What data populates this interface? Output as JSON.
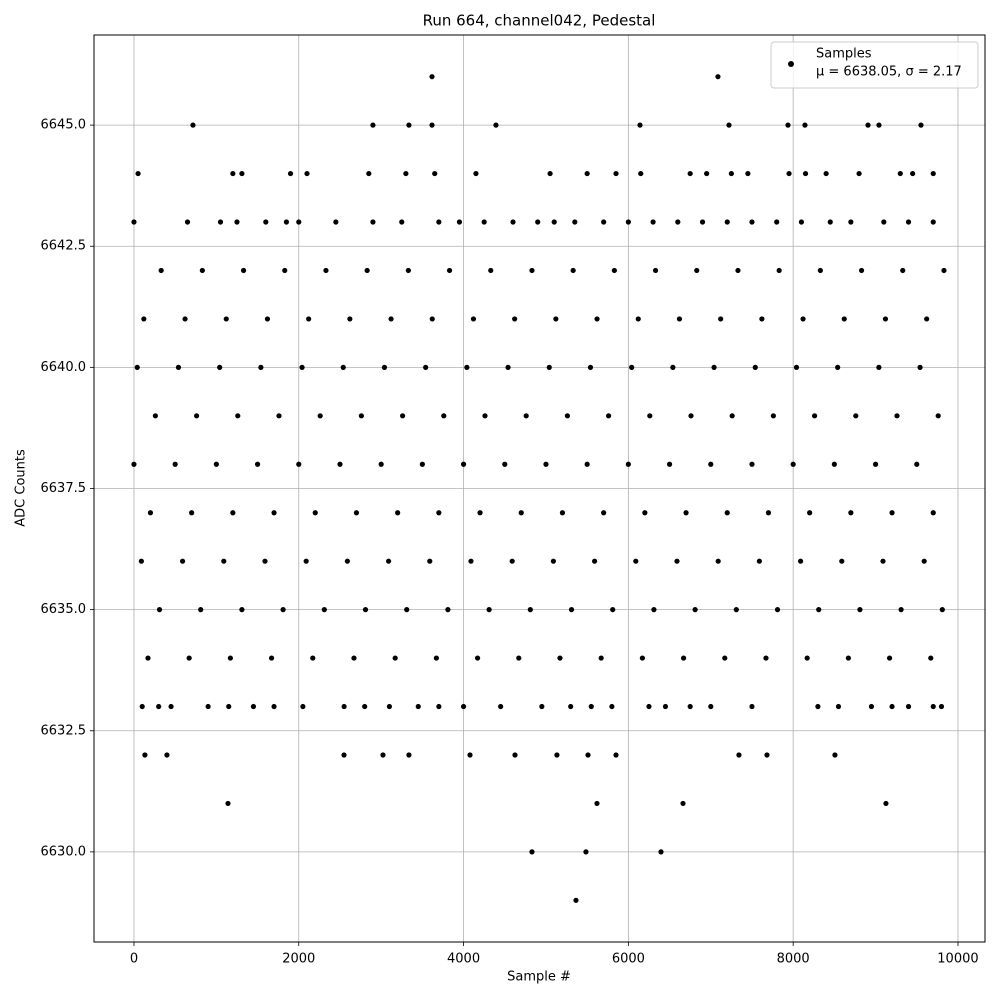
{
  "chart_data": {
    "type": "scatter",
    "title": "Run 664, channel042, Pedestal",
    "xlabel": "Sample #",
    "ylabel": "ADC Counts",
    "legend_note": "μ = 6638.05, σ = 2.17",
    "legend": "upper right",
    "grid": true,
    "xlim": [
      -485,
      10328
    ],
    "ylim": [
      6628.14,
      6646.86
    ],
    "xticks": [
      0,
      2000,
      4000,
      6000,
      8000,
      10000
    ],
    "yticks": [
      {
        "value": 6630,
        "label": "6630.0"
      },
      6632.5,
      {
        "value": 6635,
        "label": "6635.0"
      },
      6637.5,
      {
        "value": 6640,
        "label": "6640.0"
      },
      6642.5,
      {
        "value": 6645,
        "label": "6645.0"
      }
    ],
    "series": [
      {
        "name": "Samples",
        "color": "#000000",
        "x": [
          3617,
          7087,
          716,
          2900,
          3337,
          3617,
          4393,
          6141,
          7221,
          7937,
          8143,
          8908,
          9041,
          9551,
          133,
          400,
          2549,
          3022,
          3337,
          4078,
          4624,
          5133,
          5510,
          5850,
          7342,
          7682,
          8507,
          1141,
          5619,
          6663,
          9126,
          4830,
          5485,
          6396,
          5364,
          50,
          1200,
          1310,
          1900,
          2100,
          2850,
          3300,
          3650,
          4150,
          5050,
          5500,
          5850,
          6150,
          6750,
          6950,
          7250,
          7450,
          7950,
          8150,
          8400,
          8800,
          9300,
          9450,
          9700,
          0,
          650,
          1050,
          1250,
          1600,
          1850,
          2000,
          2450,
          2900,
          3250,
          3700,
          3950,
          4250,
          4600,
          4900,
          5100,
          5350,
          5700,
          6000,
          6300,
          6600,
          6900,
          7200,
          7500,
          7800,
          8100,
          8450,
          8700,
          9100,
          9400,
          9700,
          100,
          300,
          450,
          900,
          1150,
          1450,
          1700,
          2050,
          2550,
          2800,
          3100,
          3450,
          3700,
          4000,
          4450,
          4950,
          5300,
          5550,
          5800,
          6250,
          6450,
          6750,
          7000,
          7500,
          8300,
          8550,
          8950,
          9200,
          9400,
          9700,
          9800,
          330,
          830,
          1330,
          1830,
          2330,
          2830,
          3330,
          3830,
          4330,
          4830,
          5330,
          5830,
          6330,
          6830,
          7330,
          7830,
          8330,
          8830,
          9330,
          9830,
          120,
          620,
          1120,
          1620,
          2120,
          2620,
          3120,
          3620,
          4120,
          4620,
          5120,
          5620,
          6120,
          6620,
          7120,
          7620,
          8120,
          8620,
          9120,
          9620,
          40,
          540,
          1040,
          1540,
          2040,
          2540,
          3040,
          3540,
          4040,
          4540,
          5040,
          5540,
          6040,
          6540,
          7040,
          7540,
          8040,
          8540,
          9040,
          9540,
          260,
          760,
          1260,
          1760,
          2260,
          2760,
          3260,
          3760,
          4260,
          4760,
          5260,
          5760,
          6260,
          6760,
          7260,
          7760,
          8260,
          8760,
          9260,
          9760,
          0,
          500,
          1000,
          1500,
          2000,
          2500,
          3000,
          3500,
          4000,
          4500,
          5000,
          5500,
          6000,
          6500,
          7000,
          7500,
          8000,
          8500,
          9000,
          9500,
          200,
          700,
          1200,
          1700,
          2200,
          2700,
          3200,
          3700,
          4200,
          4700,
          5200,
          5700,
          6200,
          6700,
          7200,
          7700,
          8200,
          8700,
          9200,
          9700,
          90,
          590,
          1090,
          1590,
          2090,
          2590,
          3090,
          3590,
          4090,
          4590,
          5090,
          5590,
          6090,
          6590,
          7090,
          7590,
          8090,
          8590,
          9090,
          9590,
          310,
          810,
          1310,
          1810,
          2310,
          2810,
          3310,
          3810,
          4310,
          4810,
          5310,
          5810,
          6310,
          6810,
          7310,
          7810,
          8310,
          8810,
          9310,
          9810,
          170,
          670,
          1170,
          1670,
          2170,
          2670,
          3170,
          3670,
          4170,
          4670,
          5170,
          5670,
          6170,
          6670,
          7170,
          7670,
          8170,
          8670,
          9170,
          9670
        ],
        "values": [
          6646,
          6646,
          6645,
          6645,
          6645,
          6645,
          6645,
          6645,
          6645,
          6645,
          6645,
          6645,
          6645,
          6645,
          6632,
          6632,
          6632,
          6632,
          6632,
          6632,
          6632,
          6632,
          6632,
          6632,
          6632,
          6632,
          6632,
          6631,
          6631,
          6631,
          6631,
          6630,
          6630,
          6630,
          6629,
          6644,
          6644,
          6644,
          6644,
          6644,
          6644,
          6644,
          6644,
          6644,
          6644,
          6644,
          6644,
          6644,
          6644,
          6644,
          6644,
          6644,
          6644,
          6644,
          6644,
          6644,
          6644,
          6644,
          6644,
          6643,
          6643,
          6643,
          6643,
          6643,
          6643,
          6643,
          6643,
          6643,
          6643,
          6643,
          6643,
          6643,
          6643,
          6643,
          6643,
          6643,
          6643,
          6643,
          6643,
          6643,
          6643,
          6643,
          6643,
          6643,
          6643,
          6643,
          6643,
          6643,
          6643,
          6643,
          6633,
          6633,
          6633,
          6633,
          6633,
          6633,
          6633,
          6633,
          6633,
          6633,
          6633,
          6633,
          6633,
          6633,
          6633,
          6633,
          6633,
          6633,
          6633,
          6633,
          6633,
          6633,
          6633,
          6633,
          6633,
          6633,
          6633,
          6633,
          6633,
          6633,
          6633,
          6642,
          6642,
          6642,
          6642,
          6642,
          6642,
          6642,
          6642,
          6642,
          6642,
          6642,
          6642,
          6642,
          6642,
          6642,
          6642,
          6642,
          6642,
          6642,
          6642,
          6641,
          6641,
          6641,
          6641,
          6641,
          6641,
          6641,
          6641,
          6641,
          6641,
          6641,
          6641,
          6641,
          6641,
          6641,
          6641,
          6641,
          6641,
          6641,
          6641,
          6640,
          6640,
          6640,
          6640,
          6640,
          6640,
          6640,
          6640,
          6640,
          6640,
          6640,
          6640,
          6640,
          6640,
          6640,
          6640,
          6640,
          6640,
          6640,
          6640,
          6639,
          6639,
          6639,
          6639,
          6639,
          6639,
          6639,
          6639,
          6639,
          6639,
          6639,
          6639,
          6639,
          6639,
          6639,
          6639,
          6639,
          6639,
          6639,
          6639,
          6638,
          6638,
          6638,
          6638,
          6638,
          6638,
          6638,
          6638,
          6638,
          6638,
          6638,
          6638,
          6638,
          6638,
          6638,
          6638,
          6638,
          6638,
          6638,
          6638,
          6637,
          6637,
          6637,
          6637,
          6637,
          6637,
          6637,
          6637,
          6637,
          6637,
          6637,
          6637,
          6637,
          6637,
          6637,
          6637,
          6637,
          6637,
          6637,
          6637,
          6636,
          6636,
          6636,
          6636,
          6636,
          6636,
          6636,
          6636,
          6636,
          6636,
          6636,
          6636,
          6636,
          6636,
          6636,
          6636,
          6636,
          6636,
          6636,
          6636,
          6635,
          6635,
          6635,
          6635,
          6635,
          6635,
          6635,
          6635,
          6635,
          6635,
          6635,
          6635,
          6635,
          6635,
          6635,
          6635,
          6635,
          6635,
          6635,
          6635,
          6634,
          6634,
          6634,
          6634,
          6634,
          6634,
          6634,
          6634,
          6634,
          6634,
          6634,
          6634,
          6634,
          6634,
          6634,
          6634,
          6634,
          6634,
          6634,
          6634
        ]
      }
    ]
  }
}
